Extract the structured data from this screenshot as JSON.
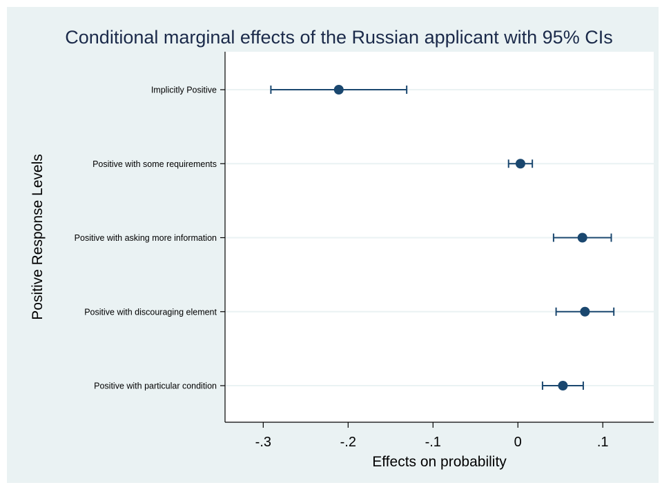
{
  "chart_data": {
    "type": "scatter",
    "title": "Conditional marginal effects of the Russian applicant with 95% CIs",
    "xlabel": "Effects on probability",
    "ylabel": "Positive Response Levels",
    "xlim": [
      -0.345,
      0.16
    ],
    "x_ticks": [
      -0.3,
      -0.2,
      -0.1,
      0,
      0.1
    ],
    "x_tick_labels": [
      "-.3",
      "-.2",
      "-.1",
      "0",
      ".1"
    ],
    "categories": [
      "Implicitly Positive",
      "Positive with some requirements",
      "Positive with asking more information",
      "Positive with discouraging element",
      "Positive with particular condition"
    ],
    "series": [
      {
        "points": [
          {
            "category": "Implicitly Positive",
            "estimate": -0.211,
            "ci_low": -0.291,
            "ci_high": -0.131
          },
          {
            "category": "Positive with some requirements",
            "estimate": 0.003,
            "ci_low": -0.011,
            "ci_high": 0.017
          },
          {
            "category": "Positive with asking more information",
            "estimate": 0.076,
            "ci_low": 0.042,
            "ci_high": 0.11
          },
          {
            "category": "Positive with discouraging element",
            "estimate": 0.079,
            "ci_low": 0.045,
            "ci_high": 0.113
          },
          {
            "category": "Positive with particular condition",
            "estimate": 0.053,
            "ci_low": 0.029,
            "ci_high": 0.077
          }
        ]
      }
    ],
    "grid": "horizontal",
    "colors": {
      "background": "#eaf2f3",
      "plot_area": "#ffffff",
      "marker": "#1a476f",
      "gridline": "#eaf2f3",
      "title": "#1b2a4a"
    }
  }
}
